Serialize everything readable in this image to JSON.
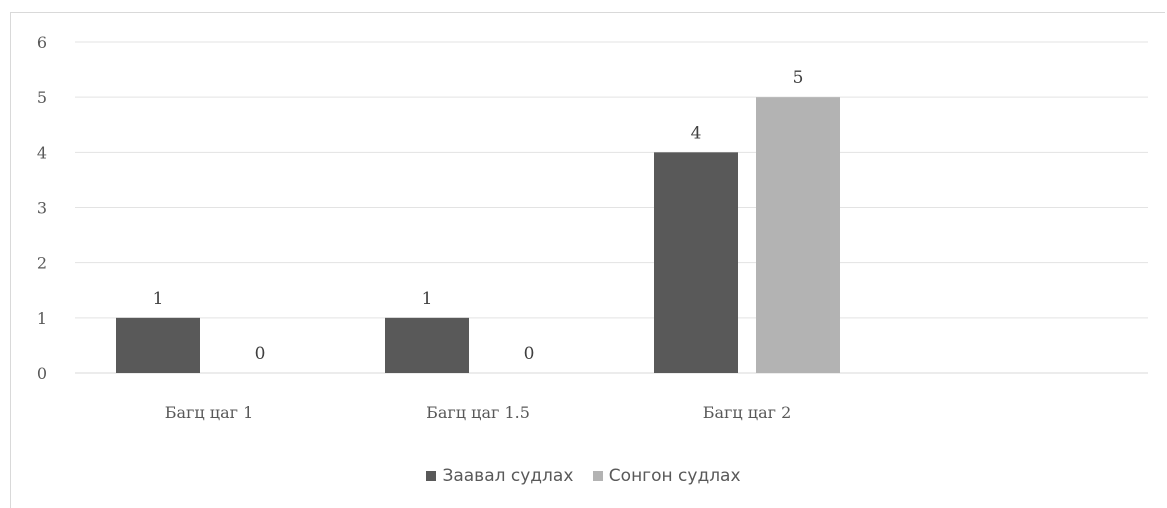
{
  "chart_data": {
    "type": "bar",
    "title": "",
    "xlabel": "",
    "ylabel": "",
    "categories": [
      "Багц цаг 1",
      "Багц цаг 1.5",
      "Багц цаг 2"
    ],
    "series": [
      {
        "name": "Заавал судлах",
        "values": [
          1,
          1,
          4
        ],
        "color": "#595959"
      },
      {
        "name": "Сонгон судлах",
        "values": [
          0,
          0,
          5
        ],
        "color": "#b3b3b3"
      }
    ],
    "ylim": [
      0,
      6
    ],
    "yticks": [
      "0",
      "1",
      "2",
      "3",
      "4",
      "5",
      "6"
    ],
    "grid": true,
    "data_labels": true,
    "legend_position": "bottom"
  }
}
